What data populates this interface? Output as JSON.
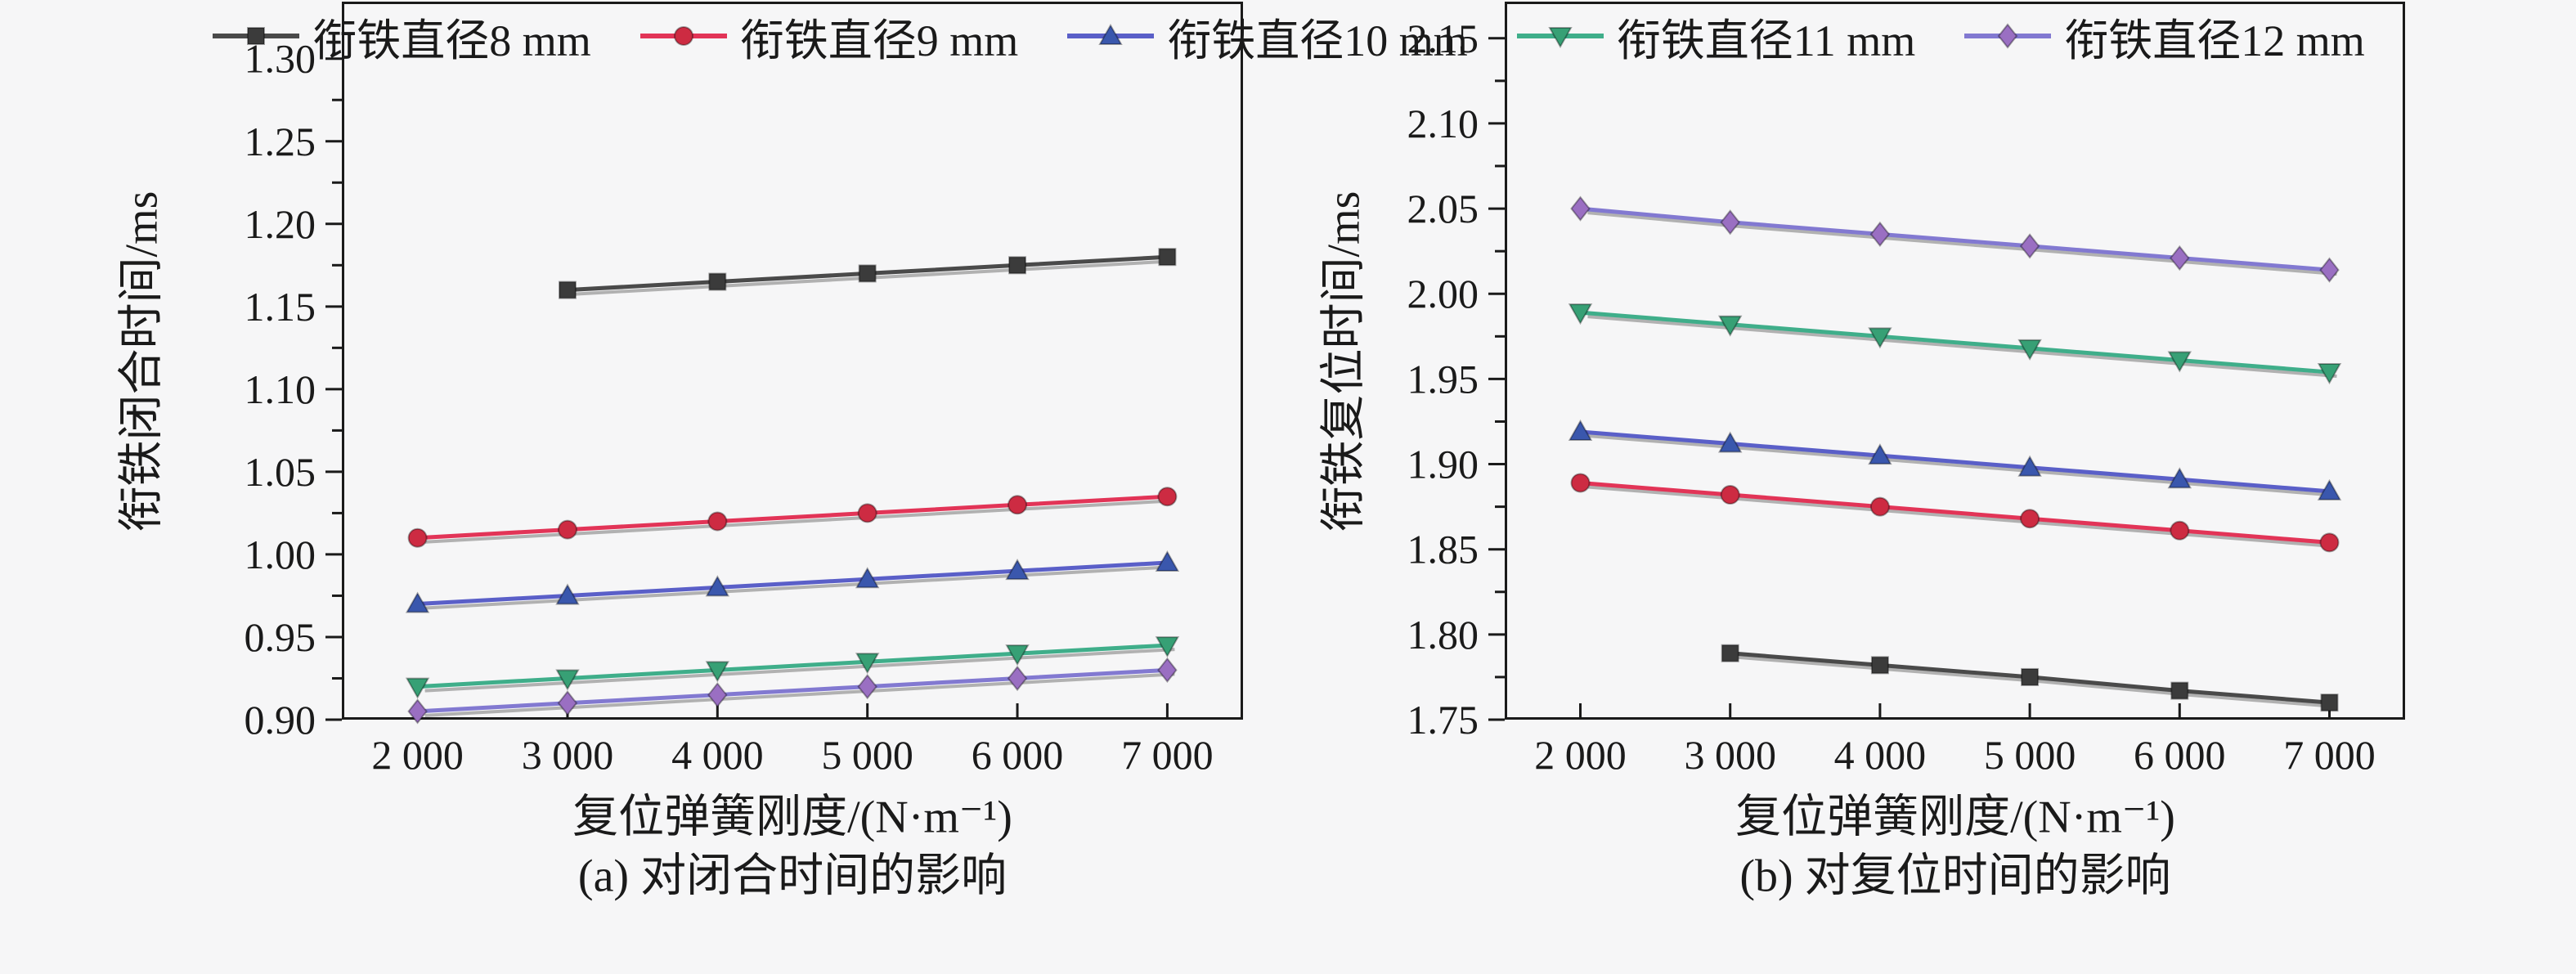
{
  "page": {
    "background_color": "#f6f6f7",
    "text_color": "#1a1a1a"
  },
  "chart_data": [
    {
      "type": "line",
      "caption": "(a) 对闭合时间的影响",
      "xlabel": "复位弹簧刚度/(N·m⁻¹)",
      "ylabel": "衔铁闭合时间/ms",
      "xlim": [
        1495,
        7505
      ],
      "ylim": [
        0.9,
        1.3345
      ],
      "grid": false,
      "x_ticks": [
        {
          "value": 2000,
          "label": "2 000"
        },
        {
          "value": 3000,
          "label": "3 000"
        },
        {
          "value": 4000,
          "label": "4 000"
        },
        {
          "value": 5000,
          "label": "5 000"
        },
        {
          "value": 6000,
          "label": "6 000"
        },
        {
          "value": 7000,
          "label": "7 000"
        }
      ],
      "y_ticks": [
        {
          "value": 0.9,
          "label": "0.90"
        },
        {
          "value": 0.95,
          "label": "0.95"
        },
        {
          "value": 1.0,
          "label": "1.00"
        },
        {
          "value": 1.05,
          "label": "1.05"
        },
        {
          "value": 1.1,
          "label": "1.10"
        },
        {
          "value": 1.15,
          "label": "1.15"
        },
        {
          "value": 1.2,
          "label": "1.20"
        },
        {
          "value": 1.25,
          "label": "1.25"
        },
        {
          "value": 1.3,
          "label": "1.30"
        }
      ],
      "series": [
        {
          "name": "衔铁直径8 mm",
          "marker": "square",
          "line_color": "#4a4a4a",
          "marker_color": "#3b3b3b",
          "x": [
            3000,
            4000,
            5000,
            6000,
            7000
          ],
          "y": [
            1.16,
            1.165,
            1.17,
            1.175,
            1.18
          ]
        },
        {
          "name": "衔铁直径9 mm",
          "marker": "circle",
          "line_color": "#e23457",
          "marker_color": "#cd2b42",
          "x": [
            2000,
            3000,
            4000,
            5000,
            6000,
            7000
          ],
          "y": [
            1.01,
            1.015,
            1.02,
            1.025,
            1.03,
            1.035
          ]
        },
        {
          "name": "衔铁直径10 mm",
          "marker": "triangle-up",
          "line_color": "#5a5fc8",
          "marker_color": "#3a57ad",
          "x": [
            2000,
            3000,
            4000,
            5000,
            6000,
            7000
          ],
          "y": [
            0.97,
            0.975,
            0.98,
            0.985,
            0.99,
            0.995
          ]
        },
        {
          "name": "衔铁直径11 mm",
          "marker": "triangle-down",
          "line_color": "#3fae8a",
          "marker_color": "#37a075",
          "x": [
            2000,
            3000,
            4000,
            5000,
            6000,
            7000
          ],
          "y": [
            0.92,
            0.925,
            0.93,
            0.935,
            0.94,
            0.945
          ]
        },
        {
          "name": "衔铁直径12 mm",
          "marker": "diamond",
          "line_color": "#8279d1",
          "marker_color": "#9a6fc2",
          "x": [
            2000,
            3000,
            4000,
            5000,
            6000,
            7000
          ],
          "y": [
            0.905,
            0.91,
            0.915,
            0.92,
            0.925,
            0.93
          ]
        }
      ]
    },
    {
      "type": "line",
      "caption": "(b) 对复位时间的影响",
      "xlabel": "复位弹簧刚度/(N·m⁻¹)",
      "ylabel": "衔铁复位时间/ms",
      "xlim": [
        1495,
        7505
      ],
      "ylim": [
        1.75,
        2.1715
      ],
      "grid": false,
      "x_ticks": [
        {
          "value": 2000,
          "label": "2 000"
        },
        {
          "value": 3000,
          "label": "3 000"
        },
        {
          "value": 4000,
          "label": "4 000"
        },
        {
          "value": 5000,
          "label": "5 000"
        },
        {
          "value": 6000,
          "label": "6 000"
        },
        {
          "value": 7000,
          "label": "7 000"
        }
      ],
      "y_ticks": [
        {
          "value": 1.75,
          "label": "1.75"
        },
        {
          "value": 1.8,
          "label": "1.80"
        },
        {
          "value": 1.85,
          "label": "1.85"
        },
        {
          "value": 1.9,
          "label": "1.90"
        },
        {
          "value": 1.95,
          "label": "1.95"
        },
        {
          "value": 2.0,
          "label": "2.00"
        },
        {
          "value": 2.05,
          "label": "2.05"
        },
        {
          "value": 2.1,
          "label": "2.10"
        },
        {
          "value": 2.15,
          "label": "2.15"
        }
      ],
      "series": [
        {
          "name": "衔铁直径8 mm",
          "marker": "square",
          "line_color": "#4a4a4a",
          "marker_color": "#3b3b3b",
          "x": [
            3000,
            4000,
            5000,
            6000,
            7000
          ],
          "y": [
            1.789,
            1.782,
            1.775,
            1.767,
            1.76
          ]
        },
        {
          "name": "衔铁直径9 mm",
          "marker": "circle",
          "line_color": "#e23457",
          "marker_color": "#cd2b42",
          "x": [
            2000,
            3000,
            4000,
            5000,
            6000,
            7000
          ],
          "y": [
            1.889,
            1.882,
            1.875,
            1.868,
            1.861,
            1.854
          ]
        },
        {
          "name": "衔铁直径10 mm",
          "marker": "triangle-up",
          "line_color": "#5a5fc8",
          "marker_color": "#3a57ad",
          "x": [
            2000,
            3000,
            4000,
            5000,
            6000,
            7000
          ],
          "y": [
            1.919,
            1.912,
            1.905,
            1.898,
            1.891,
            1.884
          ]
        },
        {
          "name": "衔铁直径11 mm",
          "marker": "triangle-down",
          "line_color": "#3fae8a",
          "marker_color": "#37a075",
          "x": [
            2000,
            3000,
            4000,
            5000,
            6000,
            7000
          ],
          "y": [
            1.989,
            1.982,
            1.975,
            1.968,
            1.961,
            1.954
          ]
        },
        {
          "name": "衔铁直径12 mm",
          "marker": "diamond",
          "line_color": "#8279d1",
          "marker_color": "#9a6fc2",
          "x": [
            2000,
            3000,
            4000,
            5000,
            6000,
            7000
          ],
          "y": [
            2.05,
            2.042,
            2.035,
            2.028,
            2.021,
            2.014
          ]
        }
      ]
    }
  ],
  "legend": {
    "items": [
      {
        "label": "衔铁直径8 mm",
        "marker": "square",
        "line_color": "#4a4a4a",
        "marker_color": "#3b3b3b"
      },
      {
        "label": "衔铁直径9 mm",
        "marker": "circle",
        "line_color": "#e23457",
        "marker_color": "#cd2b42"
      },
      {
        "label": "衔铁直径10 mm",
        "marker": "triangle-up",
        "line_color": "#5a5fc8",
        "marker_color": "#3a57ad"
      },
      {
        "label": "衔铁直径11 mm",
        "marker": "triangle-down",
        "line_color": "#3fae8a",
        "marker_color": "#37a075"
      },
      {
        "label": "衔铁直径12 mm",
        "marker": "diamond",
        "line_color": "#8279d1",
        "marker_color": "#9a6fc2"
      }
    ]
  }
}
